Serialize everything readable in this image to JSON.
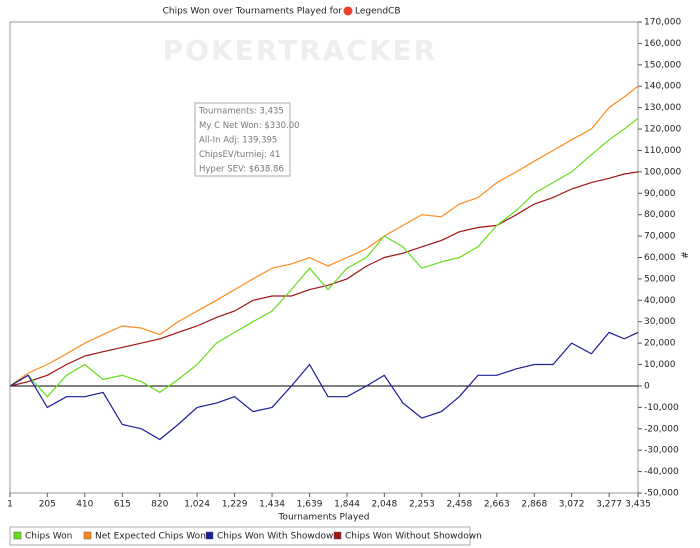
{
  "chart_data": {
    "type": "line",
    "title": "Chips Won over Tournaments Played for",
    "player": "LegendCB",
    "watermark": "POKERTRACKER",
    "x_label": "Tournaments Played",
    "y_label": "#",
    "tooltip": [
      "Tournaments: 3,435",
      "My C Net Won: $330.00",
      "All-In Adj: 139,395",
      "ChipsEV/turniej: 41",
      "Hyper SEV: $638.86"
    ],
    "x": [
      1,
      100,
      205,
      310,
      410,
      510,
      615,
      720,
      820,
      920,
      1024,
      1130,
      1229,
      1330,
      1434,
      1540,
      1639,
      1740,
      1844,
      1950,
      2048,
      2150,
      2253,
      2360,
      2458,
      2560,
      2663,
      2770,
      2868,
      2970,
      3072,
      3180,
      3277,
      3360,
      3435
    ],
    "series": [
      {
        "name": "Chips Won",
        "color": "#66dd1c",
        "values": [
          0,
          5000,
          -5000,
          5000,
          10000,
          3000,
          5000,
          2000,
          -3000,
          3000,
          10000,
          20000,
          25000,
          30000,
          35000,
          45000,
          55000,
          45000,
          55000,
          60000,
          70000,
          65000,
          55000,
          58000,
          60000,
          65000,
          75000,
          82000,
          90000,
          95000,
          100000,
          108000,
          115000,
          120000,
          125000
        ]
      },
      {
        "name": "Net Expected Chips Won",
        "color": "#ff8a1c",
        "values": [
          0,
          6000,
          10000,
          15000,
          20000,
          24000,
          28000,
          27000,
          24000,
          30000,
          35000,
          40000,
          45000,
          50000,
          55000,
          57000,
          60000,
          56000,
          60000,
          64000,
          70000,
          75000,
          80000,
          79000,
          85000,
          88000,
          95000,
          100000,
          105000,
          110000,
          115000,
          120000,
          130000,
          135000,
          140000
        ]
      },
      {
        "name": "Chips Won With Showdown",
        "color": "#1c1c9a",
        "values": [
          0,
          5000,
          -10000,
          -5000,
          -5000,
          -3000,
          -18000,
          -20000,
          -25000,
          -18000,
          -10000,
          -8000,
          -5000,
          -12000,
          -10000,
          0,
          10000,
          -5000,
          -5000,
          0,
          5000,
          -8000,
          -15000,
          -12000,
          -5000,
          5000,
          5000,
          8000,
          10000,
          10000,
          20000,
          15000,
          25000,
          22000,
          25000
        ]
      },
      {
        "name": "Chips Won Without Showdown",
        "color": "#a01414",
        "values": [
          0,
          2000,
          5000,
          10000,
          14000,
          16000,
          18000,
          20000,
          22000,
          25000,
          28000,
          32000,
          35000,
          40000,
          42000,
          42000,
          45000,
          47000,
          50000,
          56000,
          60000,
          62000,
          65000,
          68000,
          72000,
          74000,
          75000,
          80000,
          85000,
          88000,
          92000,
          95000,
          97000,
          99000,
          100000
        ]
      }
    ],
    "xlim": [
      1,
      3435
    ],
    "xticks": [
      1,
      205,
      410,
      615,
      820,
      {
        "value": 1024,
        "label": "1,024"
      },
      {
        "value": 1229,
        "label": "1,229"
      },
      {
        "value": 1434,
        "label": "1,434"
      },
      {
        "value": 1639,
        "label": "1,639"
      },
      {
        "value": 1844,
        "label": "1,844"
      },
      {
        "value": 2048,
        "label": "2,048"
      },
      {
        "value": 2253,
        "label": "2,253"
      },
      {
        "value": 2458,
        "label": "2,458"
      },
      {
        "value": 2663,
        "label": "2,663"
      },
      {
        "value": 2868,
        "label": "2,868"
      },
      {
        "value": 3072,
        "label": "3,072"
      },
      {
        "value": 3277,
        "label": "3,277"
      },
      {
        "value": 3435,
        "label": "3,435"
      }
    ],
    "ylim": [
      -50000,
      170000
    ],
    "yticks": [
      {
        "value": -50000,
        "label": "-50,000"
      },
      {
        "value": -40000,
        "label": "-40,000"
      },
      {
        "value": -30000,
        "label": "-30,000"
      },
      {
        "value": -20000,
        "label": "-20,000"
      },
      {
        "value": -10000,
        "label": "-10,000"
      },
      0,
      {
        "value": 10000,
        "label": "10,000"
      },
      {
        "value": 20000,
        "label": "20,000"
      },
      {
        "value": 30000,
        "label": "30,000"
      },
      {
        "value": 40000,
        "label": "40,000"
      },
      {
        "value": 50000,
        "label": "50,000"
      },
      {
        "value": 60000,
        "label": "60,000"
      },
      {
        "value": 70000,
        "label": "70,000"
      },
      {
        "value": 80000,
        "label": "80,000"
      },
      {
        "value": 90000,
        "label": "90,000"
      },
      {
        "value": 100000,
        "label": "100,000"
      },
      {
        "value": 110000,
        "label": "110,000"
      },
      {
        "value": 120000,
        "label": "120,000"
      },
      {
        "value": 130000,
        "label": "130,000"
      },
      {
        "value": 140000,
        "label": "140,000"
      },
      {
        "value": 150000,
        "label": "150,000"
      },
      {
        "value": 160000,
        "label": "160,000"
      },
      {
        "value": 170000,
        "label": "170,000"
      }
    ],
    "grid": false
  }
}
